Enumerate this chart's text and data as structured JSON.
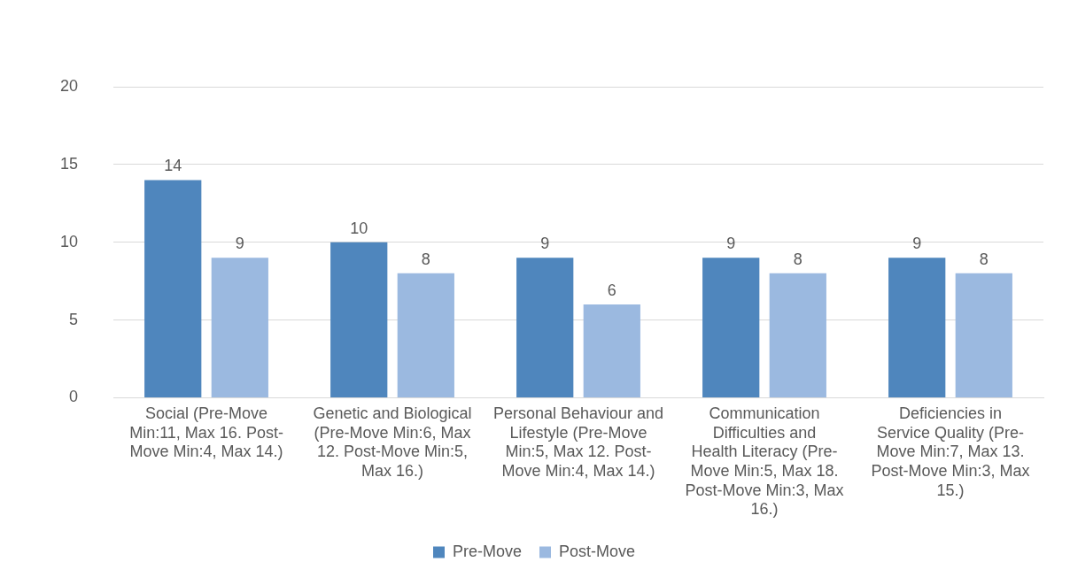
{
  "chart_data": {
    "type": "bar",
    "categories": [
      "Social (Pre-Move Min:11, Max 16. Post-Move Min:4, Max 14.)",
      "Genetic and Biological (Pre-Move Min:6, Max 12. Post-Move Min:5, Max 16.)",
      "Personal Behaviour and Lifestyle (Pre-Move Min:5, Max 12. Post-Move Min:4, Max 14.)",
      "Communication Difficulties and Health Literacy (Pre-Move Min:5, Max 18. Post-Move Min:3, Max 16.)",
      "Deficiencies in Service Quality (Pre-Move Min:7, Max 13. Post-Move Min:3, Max 15.)"
    ],
    "series": [
      {
        "name": "Pre-Move",
        "color": "#4f86bd",
        "values": [
          14,
          10,
          9,
          9,
          9
        ]
      },
      {
        "name": "Post-Move",
        "color": "#9bb9e0",
        "values": [
          9,
          8,
          6,
          8,
          8
        ]
      }
    ],
    "ylim": [
      0,
      20
    ],
    "yticks": [
      0,
      5,
      10,
      15,
      20
    ],
    "grid": "y",
    "legend": "bottom",
    "data_labels": true
  }
}
